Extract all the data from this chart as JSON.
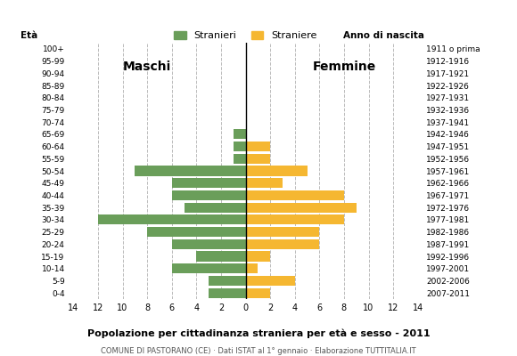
{
  "age_groups": [
    "100+",
    "95-99",
    "90-94",
    "85-89",
    "80-84",
    "75-79",
    "70-74",
    "65-69",
    "60-64",
    "55-59",
    "50-54",
    "45-49",
    "40-44",
    "35-39",
    "30-34",
    "25-29",
    "20-24",
    "15-19",
    "10-14",
    "5-9",
    "0-4"
  ],
  "birth_years": [
    "1911 o prima",
    "1912-1916",
    "1917-1921",
    "1922-1926",
    "1927-1931",
    "1932-1936",
    "1937-1941",
    "1942-1946",
    "1947-1951",
    "1952-1956",
    "1957-1961",
    "1962-1966",
    "1967-1971",
    "1972-1976",
    "1977-1981",
    "1982-1986",
    "1987-1991",
    "1992-1996",
    "1997-2001",
    "2002-2006",
    "2007-2011"
  ],
  "males": [
    0,
    0,
    0,
    0,
    0,
    0,
    0,
    1,
    1,
    1,
    9,
    6,
    6,
    5,
    12,
    8,
    6,
    4,
    6,
    3,
    3
  ],
  "females": [
    0,
    0,
    0,
    0,
    0,
    0,
    0,
    0,
    2,
    2,
    5,
    3,
    8,
    9,
    8,
    6,
    6,
    2,
    1,
    4,
    2
  ],
  "male_color": "#6a9e5a",
  "female_color": "#f5b731",
  "title": "Popolazione per cittadinanza straniera per età e sesso - 2011",
  "subtitle": "COMUNE DI PASTORANO (CE) · Dati ISTAT al 1° gennaio · Elaborazione TUTTITALIA.IT",
  "legend_male": "Stranieri",
  "legend_female": "Straniere",
  "label_eta": "Età",
  "label_anno": "Anno di nascita",
  "label_maschi": "Maschi",
  "label_femmine": "Femmine",
  "xlim": 14,
  "background_color": "#ffffff",
  "grid_color": "#bbbbbb",
  "bar_height": 0.82
}
